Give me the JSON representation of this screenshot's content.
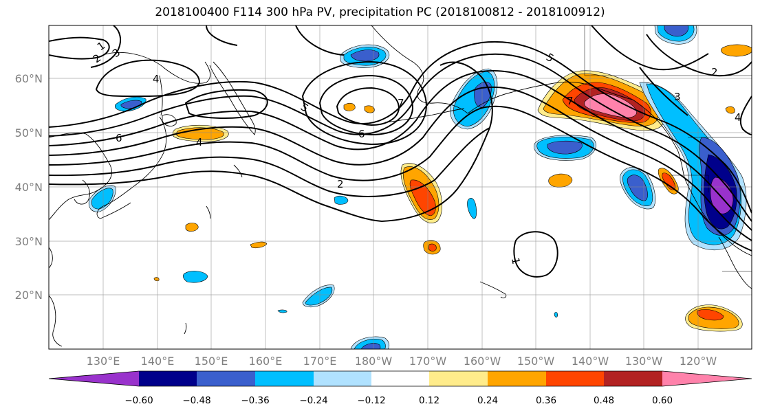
{
  "title": "2018100400 F114 300 hPa PV, precipitation PC (2018100812 - 2018100912)",
  "lat_labels": [
    "60°N",
    "50°N",
    "40°N",
    "30°N",
    "20°N"
  ],
  "lon_labels": [
    "130°E",
    "140°E",
    "150°E",
    "160°E",
    "170°E",
    "180°W",
    "170°W",
    "160°W",
    "150°W",
    "140°W",
    "130°W",
    "120°W"
  ],
  "contour_labels": [
    "1",
    "2",
    "3",
    "4",
    "6",
    "4",
    "5",
    "6",
    "7",
    "2",
    "5",
    "7",
    "3",
    "4",
    "1",
    "2"
  ],
  "colorbar": {
    "ticks": [
      "−0.60",
      "−0.48",
      "−0.36",
      "−0.24",
      "−0.12",
      "0.12",
      "0.24",
      "0.36",
      "0.48",
      "0.60"
    ],
    "colors": [
      "#9932CC",
      "#00008B",
      "#3A5FCD",
      "#00BFFF",
      "#B0E2FF",
      "#FFFFFF",
      "#FFEC8B",
      "#FFA500",
      "#FF4500",
      "#B22222",
      "#FF82AB"
    ]
  },
  "shade_colors": {
    "neg_light": "#B0E2FF",
    "neg_cyan": "#00BFFF",
    "neg_blue": "#3A5FCD",
    "neg_navy": "#00008B",
    "neg_purple": "#9932CC",
    "pos_yellow": "#FFEC8B",
    "pos_orange": "#FFA500",
    "pos_red": "#FF4500",
    "pos_darkred": "#B22222",
    "pos_pink": "#FF82AB"
  }
}
